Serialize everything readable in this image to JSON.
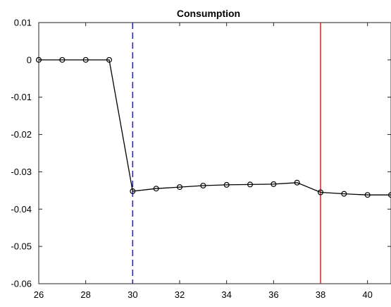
{
  "chart_data": {
    "type": "line",
    "title": "Consumption",
    "xlabel": "",
    "ylabel": "",
    "xlim": [
      26,
      41
    ],
    "ylim": [
      -0.06,
      0.01
    ],
    "grid": false,
    "x_ticks": [
      26,
      28,
      30,
      32,
      34,
      36,
      38,
      40
    ],
    "x_tick_labels": [
      "26",
      "28",
      "30",
      "32",
      "34",
      "36",
      "38",
      "40"
    ],
    "y_ticks": [
      0.01,
      0,
      -0.01,
      -0.02,
      -0.03,
      -0.04,
      -0.05,
      -0.06
    ],
    "y_tick_labels": [
      "0.01",
      "0",
      "-0.01",
      "-0.02",
      "-0.03",
      "-0.04",
      "-0.05",
      "-0.06"
    ],
    "series": [
      {
        "color": "#000000",
        "marker": "circle",
        "x": [
          26,
          27,
          28,
          29,
          30,
          31,
          32,
          33,
          34,
          35,
          36,
          37,
          38,
          39,
          40,
          41
        ],
        "y": [
          0,
          0,
          0,
          0,
          -0.0352,
          -0.0345,
          -0.0341,
          -0.0337,
          -0.0335,
          -0.0334,
          -0.0333,
          -0.0329,
          -0.0355,
          -0.0359,
          -0.0362,
          -0.0362
        ]
      }
    ],
    "vertical_lines": [
      {
        "x": 30,
        "color": "#1f1fbf",
        "style": "dashed"
      },
      {
        "x": 38,
        "color": "#d62020",
        "style": "solid"
      }
    ]
  }
}
